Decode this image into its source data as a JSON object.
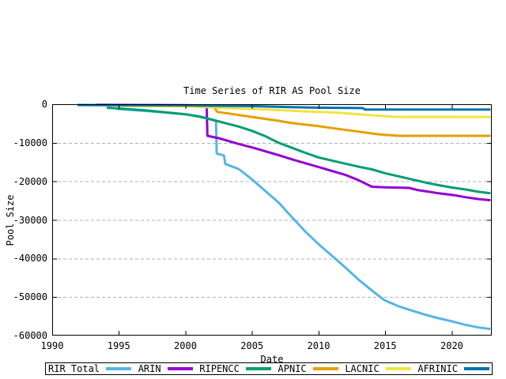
{
  "chart_data": {
    "type": "line",
    "title": "Time Series of RIR AS Pool Size",
    "xlabel": "Date",
    "ylabel": "Pool Size",
    "xlim": [
      1990,
      2023
    ],
    "ylim": [
      -60000,
      0
    ],
    "x_ticks": [
      1990,
      1995,
      2000,
      2005,
      2010,
      2015,
      2020
    ],
    "y_ticks": [
      0,
      -10000,
      -20000,
      -30000,
      -40000,
      -50000,
      -60000
    ],
    "grid": "horizontal-dashed",
    "legend_position": "bottom-outside",
    "series": [
      {
        "name": "RIR Total",
        "color": "#56b4e9",
        "points": [
          [
            1994.8,
            -1200
          ],
          [
            1996,
            -1500
          ],
          [
            1998,
            -2000
          ],
          [
            2000,
            -2600
          ],
          [
            2001,
            -3100
          ],
          [
            2001.6,
            -3600
          ],
          [
            2002.3,
            -4400
          ],
          [
            2002.35,
            -12800
          ],
          [
            2002.9,
            -13300
          ],
          [
            2003,
            -15500
          ],
          [
            2004,
            -16800
          ],
          [
            2005,
            -19500
          ],
          [
            2006,
            -22500
          ],
          [
            2007,
            -25500
          ],
          [
            2008,
            -29300
          ],
          [
            2009,
            -33000
          ],
          [
            2010,
            -36300
          ],
          [
            2011,
            -39300
          ],
          [
            2012,
            -42300
          ],
          [
            2013,
            -45500
          ],
          [
            2014,
            -48300
          ],
          [
            2014.7,
            -50200
          ],
          [
            2015,
            -50900
          ],
          [
            2016,
            -52400
          ],
          [
            2017,
            -53500
          ],
          [
            2018,
            -54600
          ],
          [
            2019,
            -55500
          ],
          [
            2020,
            -56300
          ],
          [
            2021,
            -57200
          ],
          [
            2022,
            -57900
          ],
          [
            2022.9,
            -58300
          ]
        ]
      },
      {
        "name": "ARIN",
        "color": "#9400d3",
        "points": [
          [
            1993.3,
            -150
          ],
          [
            2000,
            -250
          ],
          [
            2001.6,
            -350
          ],
          [
            2001.65,
            -8200
          ],
          [
            2002.5,
            -8800
          ],
          [
            2004,
            -10300
          ],
          [
            2005,
            -11200
          ],
          [
            2006,
            -12200
          ],
          [
            2007,
            -13200
          ],
          [
            2008,
            -14300
          ],
          [
            2009,
            -15300
          ],
          [
            2010,
            -16300
          ],
          [
            2011,
            -17300
          ],
          [
            2012,
            -18300
          ],
          [
            2013,
            -19700
          ],
          [
            2014,
            -21400
          ],
          [
            2015,
            -21550
          ],
          [
            2016.8,
            -21700
          ],
          [
            2017.5,
            -22300
          ],
          [
            2018.3,
            -22700
          ],
          [
            2019,
            -23100
          ],
          [
            2020.2,
            -23600
          ],
          [
            2021,
            -24100
          ],
          [
            2022,
            -24600
          ],
          [
            2022.9,
            -24900
          ]
        ]
      },
      {
        "name": "RIPENCC",
        "color": "#009e73",
        "points": [
          [
            1994.1,
            -900
          ],
          [
            1995,
            -1100
          ],
          [
            1997,
            -1600
          ],
          [
            2000,
            -2600
          ],
          [
            2001,
            -3200
          ],
          [
            2002,
            -4000
          ],
          [
            2003,
            -4900
          ],
          [
            2004,
            -5800
          ],
          [
            2005,
            -6900
          ],
          [
            2006,
            -8300
          ],
          [
            2007,
            -10000
          ],
          [
            2008,
            -11300
          ],
          [
            2009,
            -12600
          ],
          [
            2010,
            -13800
          ],
          [
            2011.5,
            -15000
          ],
          [
            2013,
            -16200
          ],
          [
            2014,
            -16900
          ],
          [
            2015,
            -17900
          ],
          [
            2016,
            -18700
          ],
          [
            2017,
            -19500
          ],
          [
            2018,
            -20300
          ],
          [
            2019,
            -21000
          ],
          [
            2020,
            -21600
          ],
          [
            2021,
            -22100
          ],
          [
            2022,
            -22700
          ],
          [
            2022.9,
            -23100
          ]
        ]
      },
      {
        "name": "APNIC",
        "color": "#e69f00",
        "points": [
          [
            2002.2,
            -1000
          ],
          [
            2002.4,
            -2000
          ],
          [
            2003,
            -2300
          ],
          [
            2005,
            -3300
          ],
          [
            2007,
            -4300
          ],
          [
            2008,
            -4900
          ],
          [
            2010,
            -5700
          ],
          [
            2011.5,
            -6400
          ],
          [
            2013,
            -7100
          ],
          [
            2014.5,
            -7800
          ],
          [
            2016,
            -8200
          ],
          [
            2022.9,
            -8200
          ]
        ]
      },
      {
        "name": "LACNIC",
        "color": "#f0e442",
        "points": [
          [
            1994.9,
            -400
          ],
          [
            2000,
            -600
          ],
          [
            2002,
            -800
          ],
          [
            2003,
            -1000
          ],
          [
            2005,
            -1200
          ],
          [
            2008,
            -1700
          ],
          [
            2010,
            -2000
          ],
          [
            2011.5,
            -2200
          ],
          [
            2013,
            -2600
          ],
          [
            2015,
            -3100
          ],
          [
            2016,
            -3300
          ],
          [
            2022.9,
            -3300
          ]
        ]
      },
      {
        "name": "AFRINIC",
        "color": "#0072b2",
        "points": [
          [
            1991.9,
            -200
          ],
          [
            2000,
            -300
          ],
          [
            2005,
            -500
          ],
          [
            2008,
            -750
          ],
          [
            2010,
            -900
          ],
          [
            2013.3,
            -1000
          ],
          [
            2013.5,
            -1400
          ],
          [
            2022.9,
            -1400
          ]
        ]
      }
    ]
  },
  "colors": {
    "background": "#ffffff",
    "axis": "#000000",
    "grid": "#b0b0b0",
    "text": "#000000"
  }
}
